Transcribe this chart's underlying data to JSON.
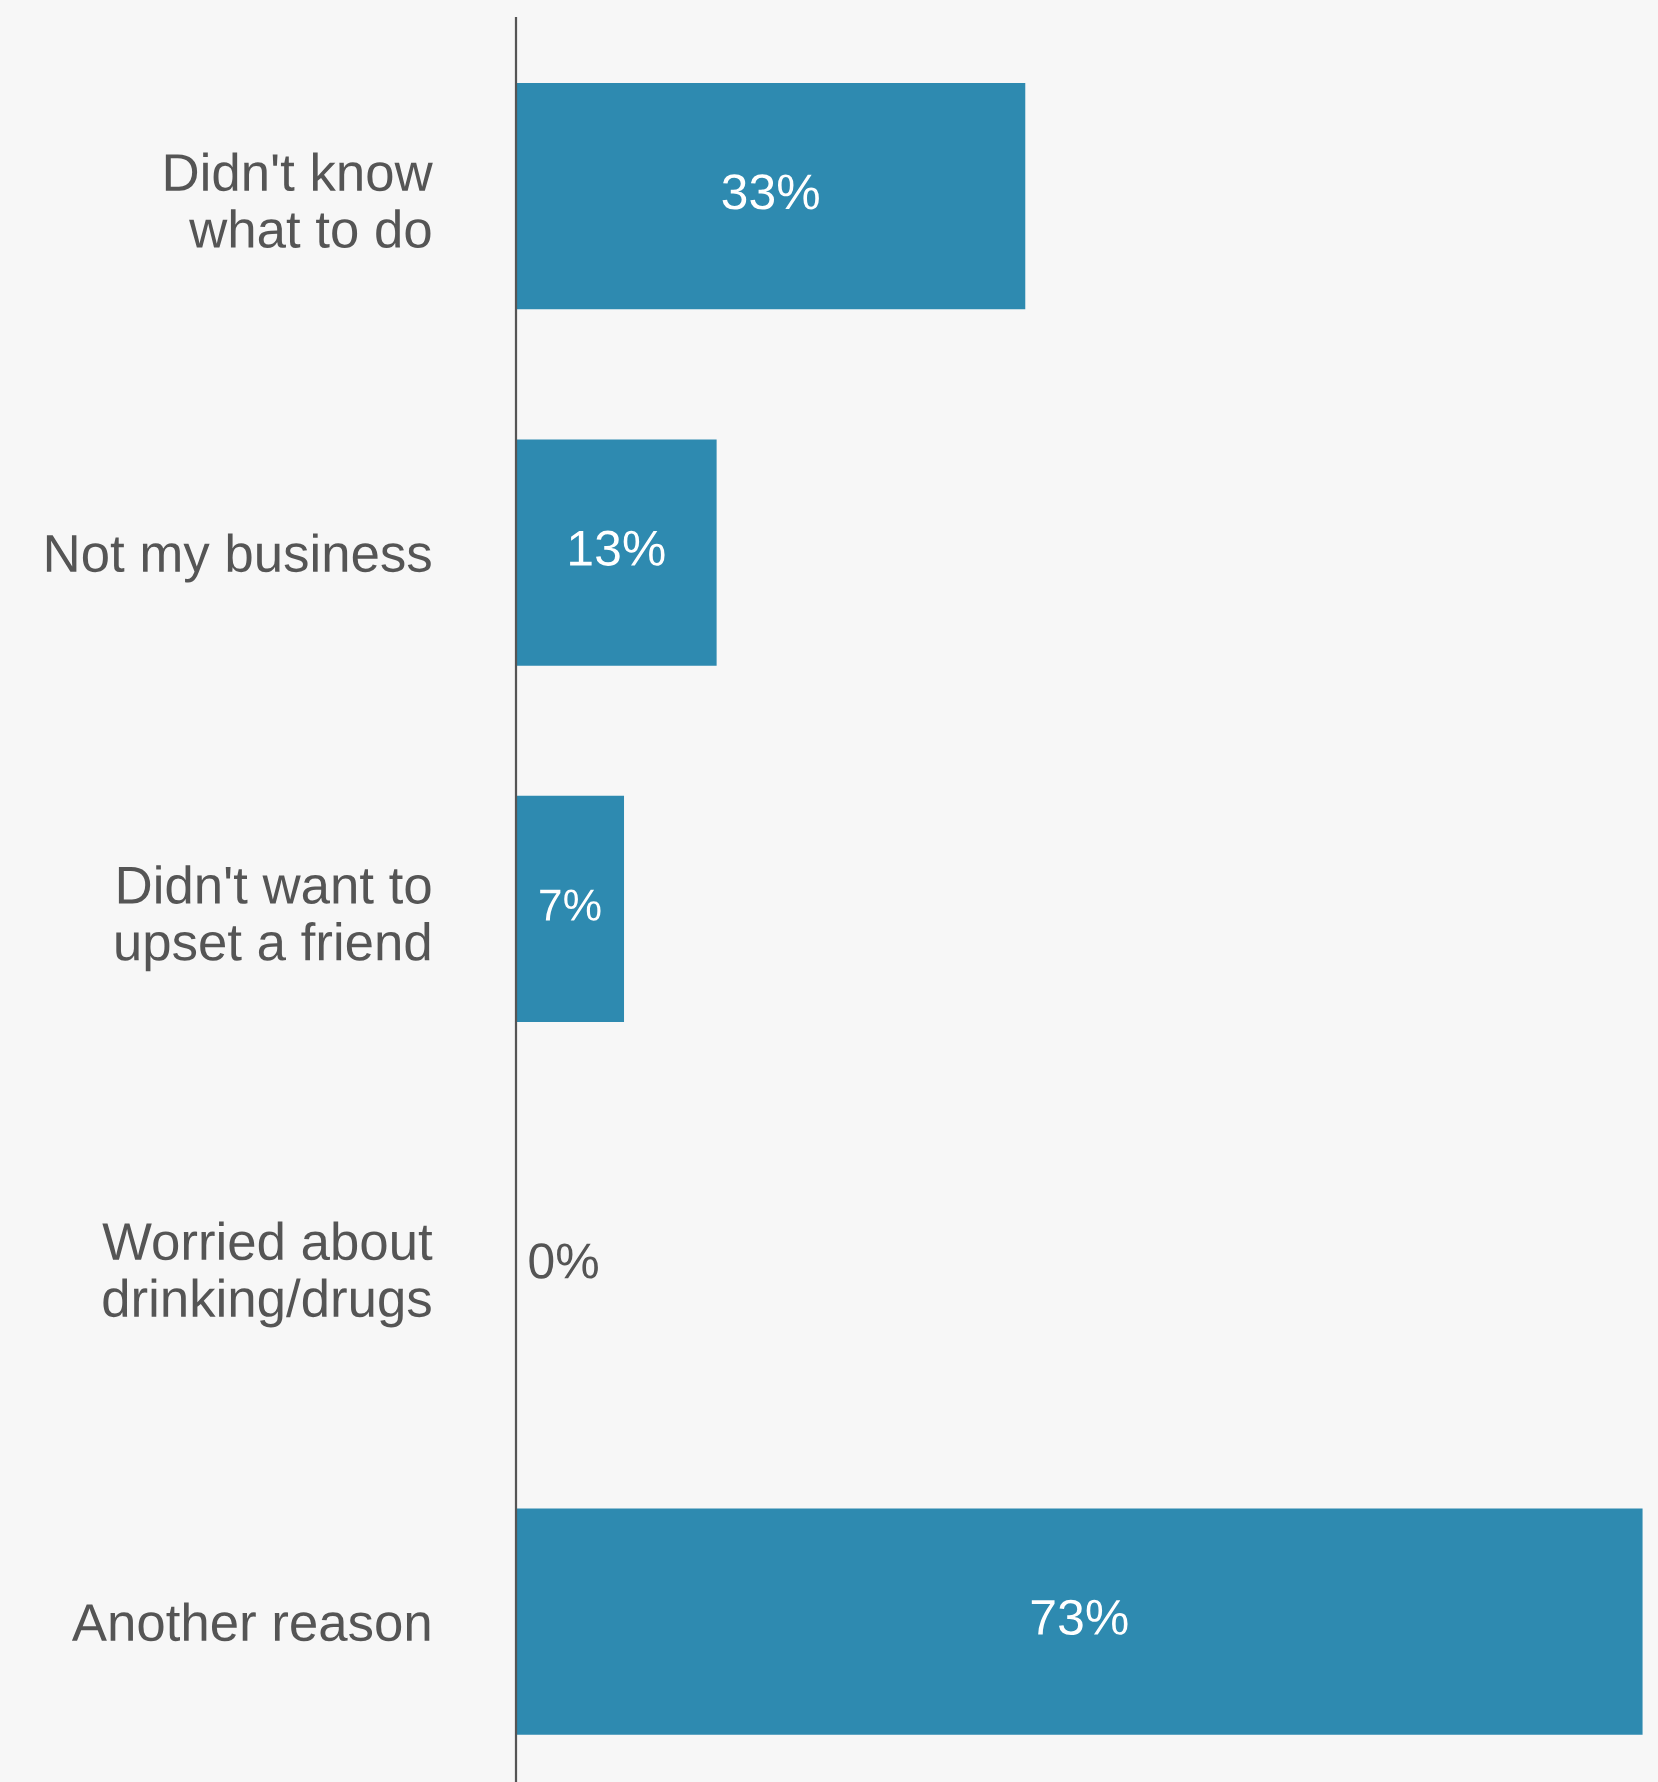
{
  "chart_data": {
    "type": "bar",
    "orientation": "horizontal",
    "categories": [
      "Didn't know\nwhat to do",
      "Not my business",
      "Didn't want to\nupset a friend",
      "Worried about\ndrinking/drugs",
      "Another reason"
    ],
    "values": [
      33,
      13,
      7,
      0,
      73
    ],
    "value_labels": [
      "33%",
      "13%",
      "7%",
      "0%",
      "73%"
    ],
    "color": "#2e8ab0",
    "xlim": [
      0,
      74
    ],
    "tick_labels": "y",
    "grid": false,
    "legend": false
  }
}
